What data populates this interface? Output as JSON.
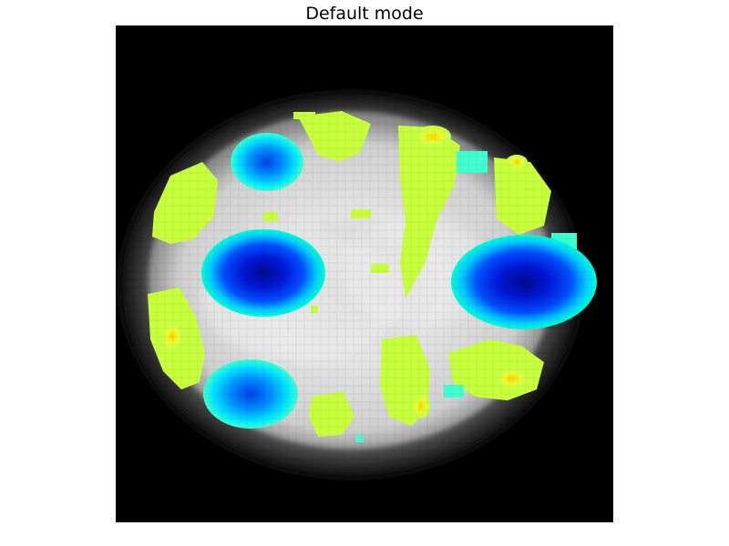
{
  "figure": {
    "title": "Default mode"
  },
  "colors": {
    "background": "#000000",
    "tissue_light": "#e6e6e6",
    "tissue_mid": "#b4b4b4",
    "overlay_low": "#c8ff3c",
    "overlay_high": "#ffd400",
    "overlay_cyan": "#00ffe0",
    "overlay_blue": "#0050ff",
    "overlay_deep": "#000a8c"
  }
}
